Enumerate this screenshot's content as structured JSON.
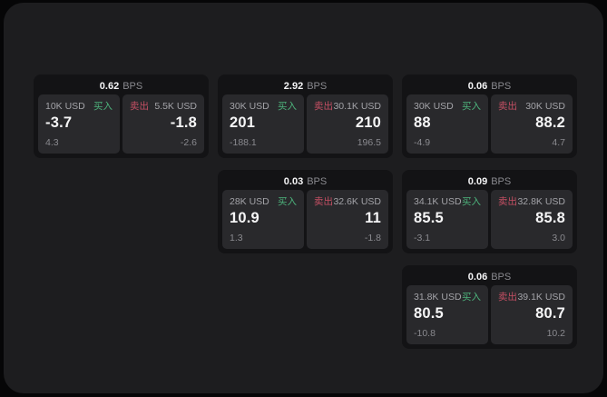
{
  "labels": {
    "bps": "BPS",
    "buy": "买入",
    "sell": "卖出"
  },
  "colors": {
    "page_bg": "#060607",
    "panel_bg": "#1d1d1f",
    "card_bg": "#131315",
    "tile_bg": "#29292c",
    "text_primary": "#f5f5f6",
    "text_secondary": "#a3a3a8",
    "text_muted": "#8a8a8f",
    "accent_green": "#4db37c",
    "accent_red": "#c44f63"
  },
  "cards": [
    {
      "bps": "0.62",
      "buy": {
        "amount": "10K USD",
        "price": "-3.7",
        "delta": "4.3"
      },
      "sell": {
        "amount": "5.5K USD",
        "price": "-1.8",
        "delta": "-2.6"
      }
    },
    {
      "bps": "2.92",
      "buy": {
        "amount": "30K USD",
        "price": "201",
        "delta": "-188.1"
      },
      "sell": {
        "amount": "30.1K USD",
        "price": "210",
        "delta": "196.5"
      }
    },
    {
      "bps": "0.06",
      "buy": {
        "amount": "30K USD",
        "price": "88",
        "delta": "-4.9"
      },
      "sell": {
        "amount": "30K USD",
        "price": "88.2",
        "delta": "4.7"
      }
    },
    {
      "bps": "0.03",
      "buy": {
        "amount": "28K USD",
        "price": "10.9",
        "delta": "1.3"
      },
      "sell": {
        "amount": "32.6K USD",
        "price": "11",
        "delta": "-1.8"
      }
    },
    {
      "bps": "0.09",
      "buy": {
        "amount": "34.1K USD",
        "price": "85.5",
        "delta": "-3.1"
      },
      "sell": {
        "amount": "32.8K USD",
        "price": "85.8",
        "delta": "3.0"
      }
    },
    {
      "bps": "0.06",
      "buy": {
        "amount": "31.8K USD",
        "price": "80.5",
        "delta": "-10.8"
      },
      "sell": {
        "amount": "39.1K USD",
        "price": "80.7",
        "delta": "10.2"
      }
    }
  ]
}
